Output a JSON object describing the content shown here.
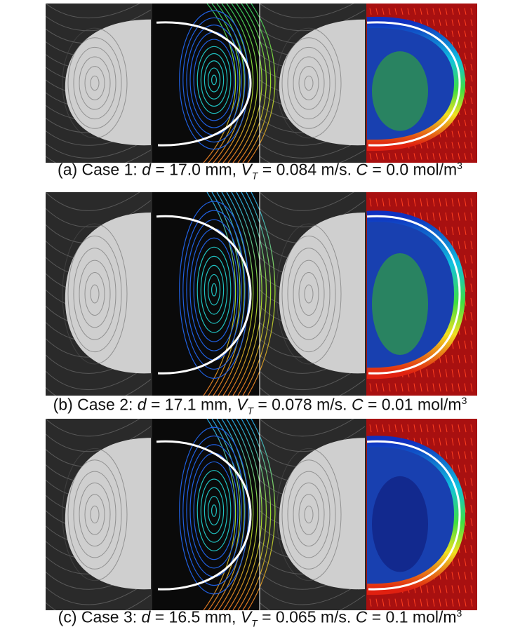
{
  "panels": [
    {
      "caption": {
        "prefix": "(a) Case 1: ",
        "d_symbol": "d",
        "d_text": " = 17.0 mm, ",
        "v_symbol": "V",
        "v_subscript": "T",
        "v_text": " = 0.084 m/s. ",
        "c_symbol": "C",
        "c_text": " = 0.0 mol/m",
        "c_superscript": "3"
      }
    },
    {
      "caption": {
        "prefix": "(b) Case 2: ",
        "d_symbol": "d",
        "d_text": " = 17.1 mm, ",
        "v_symbol": "V",
        "v_subscript": "T",
        "v_text": " = 0.078 m/s. ",
        "c_symbol": "C",
        "c_text": " = 0.01 mol/m",
        "c_superscript": "3"
      }
    },
    {
      "caption": {
        "prefix": "(c) Case 3: ",
        "d_symbol": "d",
        "d_text": " = 16.5 mm, ",
        "v_symbol": "V",
        "v_subscript": "T",
        "v_text": " = 0.065 m/s. ",
        "c_symbol": "C",
        "c_text": " = 0.1 mol/m",
        "c_superscript": "3"
      }
    }
  ]
}
